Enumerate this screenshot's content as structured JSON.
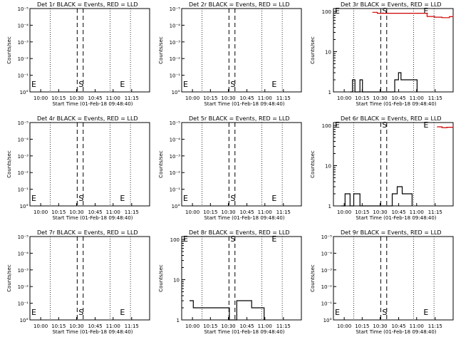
{
  "figure": {
    "xlabel": "Start Time (01-Feb-18 09:48:40)",
    "ylabel": "Counts/sec",
    "x_tick_labels": [
      "10:00",
      "10:15",
      "10:30",
      "10:45",
      "11:00",
      "11:15"
    ],
    "log_tick_labels": [
      "10°",
      "10⁻¹",
      "10⁻²",
      "10⁻³",
      "10⁻⁴",
      "10⁻⁵"
    ],
    "linear_tick_labels": [
      "1",
      "10",
      "100"
    ],
    "markers": {
      "start": "S",
      "end": "E"
    },
    "colors": {
      "events": "#000000",
      "lld": "#cc0000"
    }
  },
  "chart_data": [
    {
      "type": "line",
      "title": "Det 1r BLACK = Events, RED = LLD",
      "yscale": "log",
      "ylim": [
        1e-05,
        1
      ],
      "xlim": [
        "09:48:40",
        "11:25:00"
      ],
      "series": []
    },
    {
      "type": "line",
      "title": "Det 2r BLACK = Events, RED = LLD",
      "yscale": "log",
      "ylim": [
        1e-05,
        1
      ],
      "xlim": [
        "09:48:40",
        "11:25:00"
      ],
      "series": []
    },
    {
      "type": "line",
      "title": "Det 3r BLACK = Events, RED = LLD",
      "yscale": "log",
      "ylim": [
        1,
        100
      ],
      "xlim": [
        "09:48:40",
        "11:25:00"
      ],
      "series": [
        {
          "color": "#000000",
          "x": [
            "10:02",
            "10:04",
            "10:06",
            "10:10",
            "10:12",
            "10:14",
            "10:30",
            "10:38",
            "10:41",
            "10:43",
            "10:46",
            "10:50",
            "10:53",
            "10:56"
          ],
          "y": [
            1,
            2,
            1,
            2,
            1,
            1,
            1,
            2,
            3,
            2,
            2,
            2,
            2,
            1
          ]
        },
        {
          "color": "#cc0000",
          "x": [
            "10:20",
            "10:24",
            "11:04",
            "11:10",
            "11:16",
            "11:22",
            "11:25"
          ],
          "y": [
            95,
            90,
            75,
            72,
            70,
            74,
            80
          ]
        }
      ]
    },
    {
      "type": "line",
      "title": "Det 4r BLACK = Events, RED = LLD",
      "yscale": "log",
      "ylim": [
        1e-05,
        1
      ],
      "xlim": [
        "09:48:40",
        "11:25:00"
      ],
      "series": []
    },
    {
      "type": "line",
      "title": "Det 5r BLACK = Events, RED = LLD",
      "yscale": "log",
      "ylim": [
        1e-05,
        1
      ],
      "xlim": [
        "09:48:40",
        "11:25:00"
      ],
      "series": []
    },
    {
      "type": "line",
      "title": "Det 6r BLACK = Events, RED = LLD",
      "yscale": "log",
      "ylim": [
        1,
        100
      ],
      "xlim": [
        "09:48:40",
        "11:25:00"
      ],
      "series": [
        {
          "color": "#000000",
          "x": [
            "09:55",
            "09:58",
            "10:02",
            "10:05",
            "10:10",
            "10:13",
            "10:30",
            "10:36",
            "10:40",
            "10:44",
            "10:48",
            "10:52"
          ],
          "y": [
            1,
            2,
            1,
            2,
            1,
            1,
            1,
            2,
            3,
            2,
            2,
            1
          ]
        },
        {
          "color": "#cc0000",
          "x": [
            "11:12",
            "11:16",
            "11:20",
            "11:25"
          ],
          "y": [
            92,
            88,
            90,
            95
          ]
        }
      ]
    },
    {
      "type": "line",
      "title": "Det 7r BLACK = Events, RED = LLD",
      "yscale": "log",
      "ylim": [
        1e-05,
        1
      ],
      "xlim": [
        "09:48:40",
        "11:25:00"
      ],
      "series": []
    },
    {
      "type": "line",
      "title": "Det 8r BLACK = Events, RED = LLD",
      "yscale": "log",
      "ylim": [
        1,
        100
      ],
      "xlim": [
        "09:48:40",
        "11:25:00"
      ],
      "series": [
        {
          "color": "#000000",
          "x": [
            "09:55",
            "09:58",
            "10:02",
            "10:08",
            "10:14",
            "10:20",
            "10:27",
            "10:33",
            "10:40",
            "10:45",
            "10:50",
            "10:55"
          ],
          "y": [
            3,
            2,
            2,
            2,
            2,
            2,
            1,
            3,
            3,
            2,
            2,
            1
          ]
        }
      ]
    },
    {
      "type": "line",
      "title": "Det 9r BLACK = Events, RED = LLD",
      "yscale": "log",
      "ylim": [
        1e-05,
        1
      ],
      "xlim": [
        "09:48:40",
        "11:25:00"
      ],
      "series": []
    }
  ]
}
